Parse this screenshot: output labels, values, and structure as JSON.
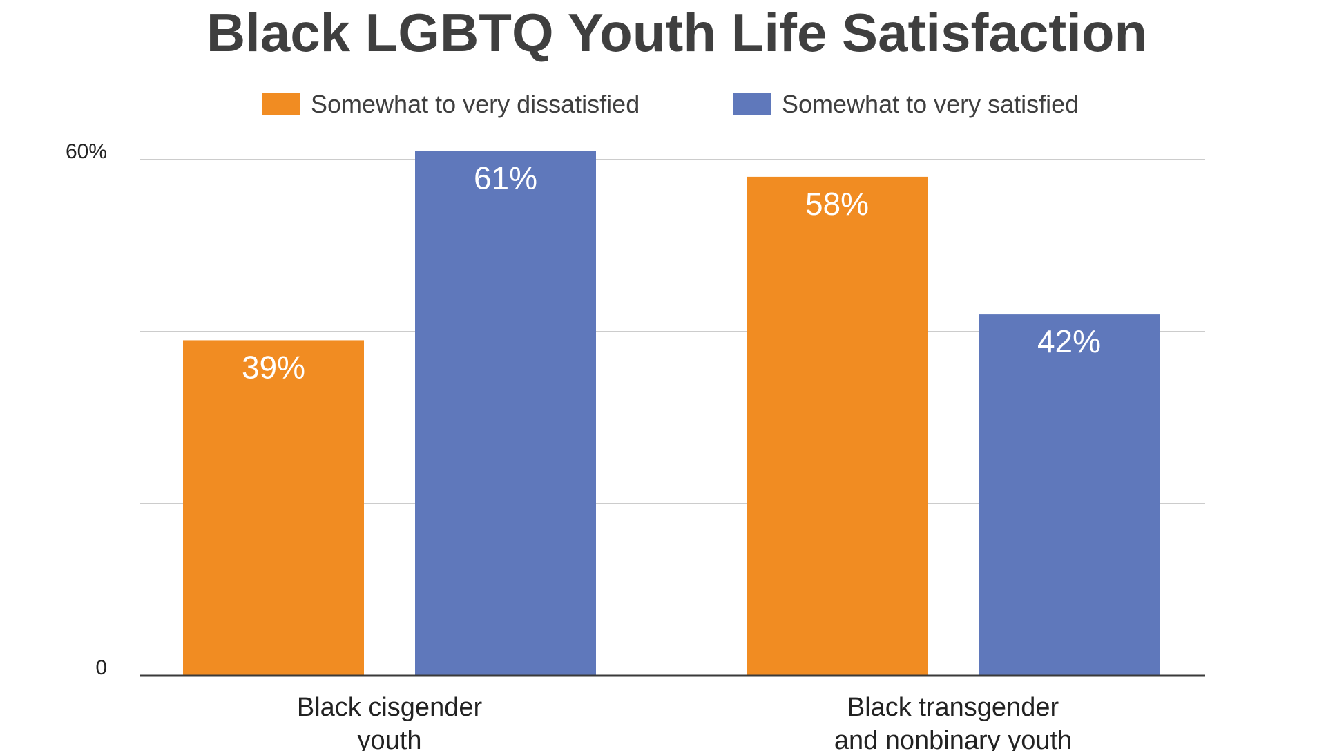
{
  "chart_data": {
    "type": "bar",
    "title": "Black LGBTQ Youth Life Satisfaction",
    "categories": [
      [
        "Black cisgender",
        "youth"
      ],
      [
        "Black transgender",
        "and nonbinary youth"
      ]
    ],
    "series": [
      {
        "name": "Somewhat to very dissatisfied",
        "color": "#f18c22",
        "values": [
          39,
          58
        ],
        "labels": [
          "39%",
          "58%"
        ]
      },
      {
        "name": "Somewhat to very satisfied",
        "color": "#5f78bb",
        "values": [
          61,
          42
        ],
        "labels": [
          "61%",
          "42%"
        ]
      }
    ],
    "ylim": [
      0,
      60
    ],
    "yticks": [
      {
        "value": 0,
        "label": "0"
      },
      {
        "value": 60,
        "label": "60%"
      }
    ],
    "gridlines": [
      20,
      40,
      60
    ],
    "grid": true,
    "legend": "top",
    "xlabel": "",
    "ylabel": ""
  }
}
